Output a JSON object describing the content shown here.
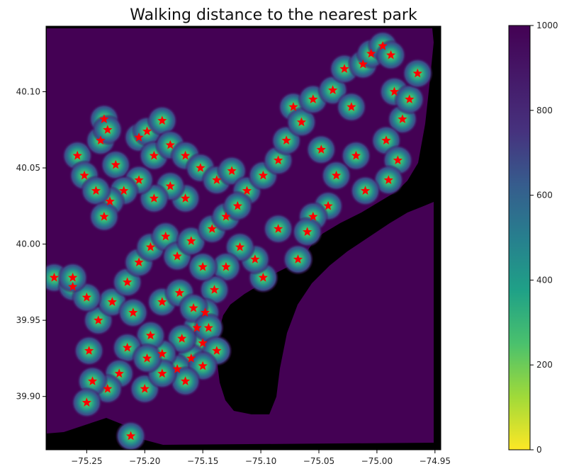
{
  "chart_data": {
    "type": "heatmap",
    "title": "Walking distance to the nearest park",
    "xlabel": "",
    "ylabel": "",
    "xlim": [
      -75.285,
      -74.945
    ],
    "ylim": [
      39.865,
      40.143
    ],
    "xticks": [
      -75.25,
      -75.2,
      -75.15,
      -75.1,
      -75.05,
      -75.0,
      -74.95
    ],
    "xtick_labels": [
      "−75.25",
      "−75.20",
      "−75.15",
      "−75.10",
      "−75.05",
      "−75.00",
      "−74.95"
    ],
    "yticks": [
      39.9,
      39.95,
      40.0,
      40.05,
      40.1
    ],
    "ytick_labels": [
      "39.90",
      "39.95",
      "40.00",
      "40.05",
      "40.10"
    ],
    "colorbar": {
      "colormap": "viridis_r",
      "range": [
        0,
        1000
      ],
      "ticks": [
        0,
        200,
        400,
        600,
        800,
        1000
      ],
      "tick_labels": [
        "0",
        "200",
        "400",
        "600",
        "800",
        "1000"
      ]
    },
    "background_color": "#000000",
    "grid": false,
    "park_marker": {
      "shape": "star",
      "color": "#ff0000"
    },
    "parks": [
      [
        -75.278,
        39.978
      ],
      [
        -75.262,
        39.972
      ],
      [
        -75.258,
        40.058
      ],
      [
        -75.252,
        40.045
      ],
      [
        -75.238,
        40.068
      ],
      [
        -75.235,
        40.082
      ],
      [
        -75.232,
        40.075
      ],
      [
        -75.225,
        40.052
      ],
      [
        -75.205,
        40.07
      ],
      [
        -75.198,
        40.074
      ],
      [
        -75.192,
        40.058
      ],
      [
        -75.185,
        40.081
      ],
      [
        -75.178,
        40.065
      ],
      [
        -75.165,
        40.058
      ],
      [
        -75.152,
        40.05
      ],
      [
        -75.138,
        40.042
      ],
      [
        -75.125,
        40.048
      ],
      [
        -75.112,
        40.035
      ],
      [
        -75.098,
        40.045
      ],
      [
        -75.085,
        40.055
      ],
      [
        -75.078,
        40.068
      ],
      [
        -75.072,
        40.09
      ],
      [
        -75.065,
        40.08
      ],
      [
        -75.055,
        40.095
      ],
      [
        -75.048,
        40.062
      ],
      [
        -75.038,
        40.101
      ],
      [
        -75.028,
        40.115
      ],
      [
        -75.022,
        40.09
      ],
      [
        -75.012,
        40.118
      ],
      [
        -75.005,
        40.125
      ],
      [
        -74.995,
        40.13
      ],
      [
        -74.988,
        40.124
      ],
      [
        -74.985,
        40.1
      ],
      [
        -74.978,
        40.082
      ],
      [
        -74.972,
        40.095
      ],
      [
        -74.965,
        40.112
      ],
      [
        -74.992,
        40.068
      ],
      [
        -74.982,
        40.055
      ],
      [
        -74.99,
        40.042
      ],
      [
        -75.01,
        40.035
      ],
      [
        -75.018,
        40.058
      ],
      [
        -75.035,
        40.045
      ],
      [
        -75.042,
        40.025
      ],
      [
        -75.055,
        40.018
      ],
      [
        -75.06,
        40.008
      ],
      [
        -75.068,
        39.99
      ],
      [
        -75.085,
        40.01
      ],
      [
        -75.098,
        39.978
      ],
      [
        -75.105,
        39.99
      ],
      [
        -75.118,
        39.998
      ],
      [
        -75.13,
        39.985
      ],
      [
        -75.14,
        39.97
      ],
      [
        -75.148,
        39.955
      ],
      [
        -75.155,
        39.945
      ],
      [
        -75.15,
        39.935
      ],
      [
        -75.16,
        39.925
      ],
      [
        -75.168,
        39.938
      ],
      [
        -75.172,
        39.918
      ],
      [
        -75.185,
        39.928
      ],
      [
        -75.195,
        39.94
      ],
      [
        -75.2,
        39.905
      ],
      [
        -75.215,
        39.932
      ],
      [
        -75.222,
        39.915
      ],
      [
        -75.232,
        39.905
      ],
      [
        -75.245,
        39.91
      ],
      [
        -75.25,
        39.896
      ],
      [
        -75.212,
        39.874
      ],
      [
        -75.248,
        39.93
      ],
      [
        -75.24,
        39.95
      ],
      [
        -75.228,
        39.962
      ],
      [
        -75.215,
        39.975
      ],
      [
        -75.205,
        39.988
      ],
      [
        -75.195,
        39.998
      ],
      [
        -75.182,
        40.005
      ],
      [
        -75.172,
        39.992
      ],
      [
        -75.16,
        40.002
      ],
      [
        -75.15,
        39.985
      ],
      [
        -75.142,
        40.01
      ],
      [
        -75.13,
        40.018
      ],
      [
        -75.12,
        40.025
      ],
      [
        -75.165,
        40.03
      ],
      [
        -75.178,
        40.038
      ],
      [
        -75.192,
        40.03
      ],
      [
        -75.205,
        40.042
      ],
      [
        -75.218,
        40.035
      ],
      [
        -75.23,
        40.028
      ],
      [
        -75.242,
        40.035
      ],
      [
        -75.235,
        40.018
      ],
      [
        -75.25,
        39.965
      ],
      [
        -75.262,
        39.978
      ],
      [
        -75.21,
        39.955
      ],
      [
        -75.185,
        39.962
      ],
      [
        -75.17,
        39.968
      ],
      [
        -75.158,
        39.958
      ],
      [
        -75.145,
        39.945
      ],
      [
        -75.138,
        39.93
      ],
      [
        -75.15,
        39.92
      ],
      [
        -75.165,
        39.91
      ],
      [
        -75.185,
        39.915
      ],
      [
        -75.198,
        39.925
      ]
    ]
  }
}
